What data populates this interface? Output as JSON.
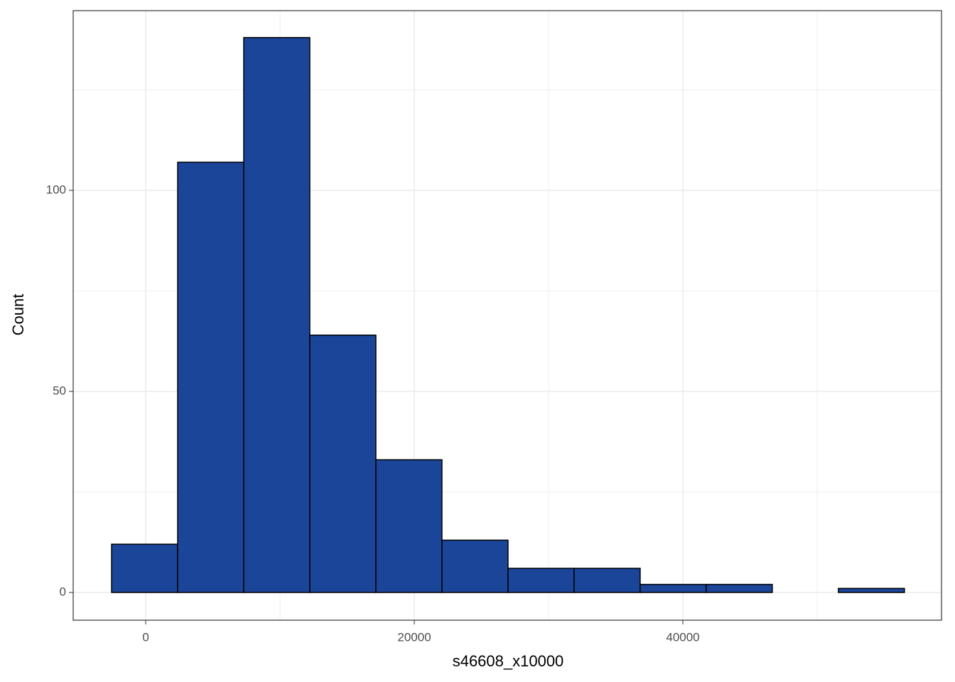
{
  "chart_data": {
    "type": "histogram",
    "xlabel": "s46608_x10000",
    "ylabel": "Count",
    "bins": [
      -2540,
      2380,
      7300,
      12220,
      17140,
      22060,
      26980,
      31900,
      36820,
      41740,
      46660,
      51580,
      56500
    ],
    "values": [
      12,
      107,
      138,
      64,
      33,
      13,
      6,
      6,
      2,
      2,
      0,
      1
    ],
    "color": "#1a4599",
    "edgecolor": "#000000",
    "xlim": [
      -5400,
      59260
    ],
    "ylim": [
      -6.9,
      144.7
    ],
    "xticks": [
      0,
      20000,
      40000
    ],
    "yticks": [
      0,
      50,
      100
    ],
    "minor_xticks": [
      10000,
      30000,
      50000
    ],
    "minor_yticks": [
      25,
      75,
      125
    ],
    "grid": true
  }
}
